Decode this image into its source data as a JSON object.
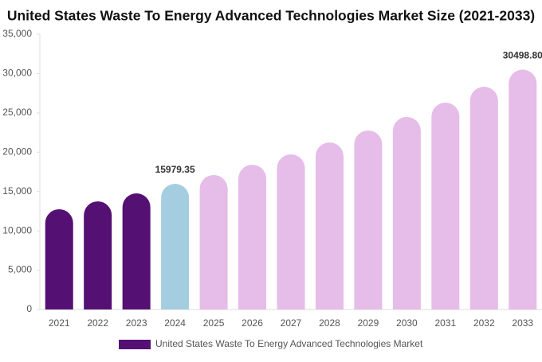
{
  "chart_data": {
    "type": "bar",
    "title": "United States Waste To Energy Advanced Technologies Market Size (2021-2033)",
    "categories": [
      "2021",
      "2022",
      "2023",
      "2024",
      "2025",
      "2026",
      "2027",
      "2028",
      "2029",
      "2030",
      "2031",
      "2032",
      "2033"
    ],
    "series": [
      {
        "name": "United States Waste To Energy Advanced Technologies Market",
        "color": "#541173",
        "values": [
          12750,
          13750,
          14770,
          15979.35,
          17100,
          18400,
          19720,
          21240,
          22760,
          24480,
          26300,
          28320,
          30498.8
        ],
        "value_labels": [
          null,
          null,
          null,
          "15979.35",
          null,
          null,
          null,
          null,
          null,
          null,
          null,
          null,
          "30498.80"
        ],
        "colors": [
          "#541173",
          "#541173",
          "#541173",
          "#a5cde0",
          "#e6bce9",
          "#e6bce9",
          "#e6bce9",
          "#e6bce9",
          "#e6bce9",
          "#e6bce9",
          "#e6bce9",
          "#e6bce9",
          "#e6bce9"
        ]
      }
    ],
    "ylim": [
      0,
      35000
    ],
    "yticks": [
      0,
      {
        "value": 5000,
        "label": "5,000"
      },
      {
        "value": 10000,
        "label": "10,000"
      },
      {
        "value": 15000,
        "label": "15,000"
      },
      {
        "value": 20000,
        "label": "20,000"
      },
      {
        "value": 25000,
        "label": "25,000"
      },
      {
        "value": 30000,
        "label": "30,000"
      },
      {
        "value": 35000,
        "label": "35,000"
      }
    ],
    "grid": false
  }
}
